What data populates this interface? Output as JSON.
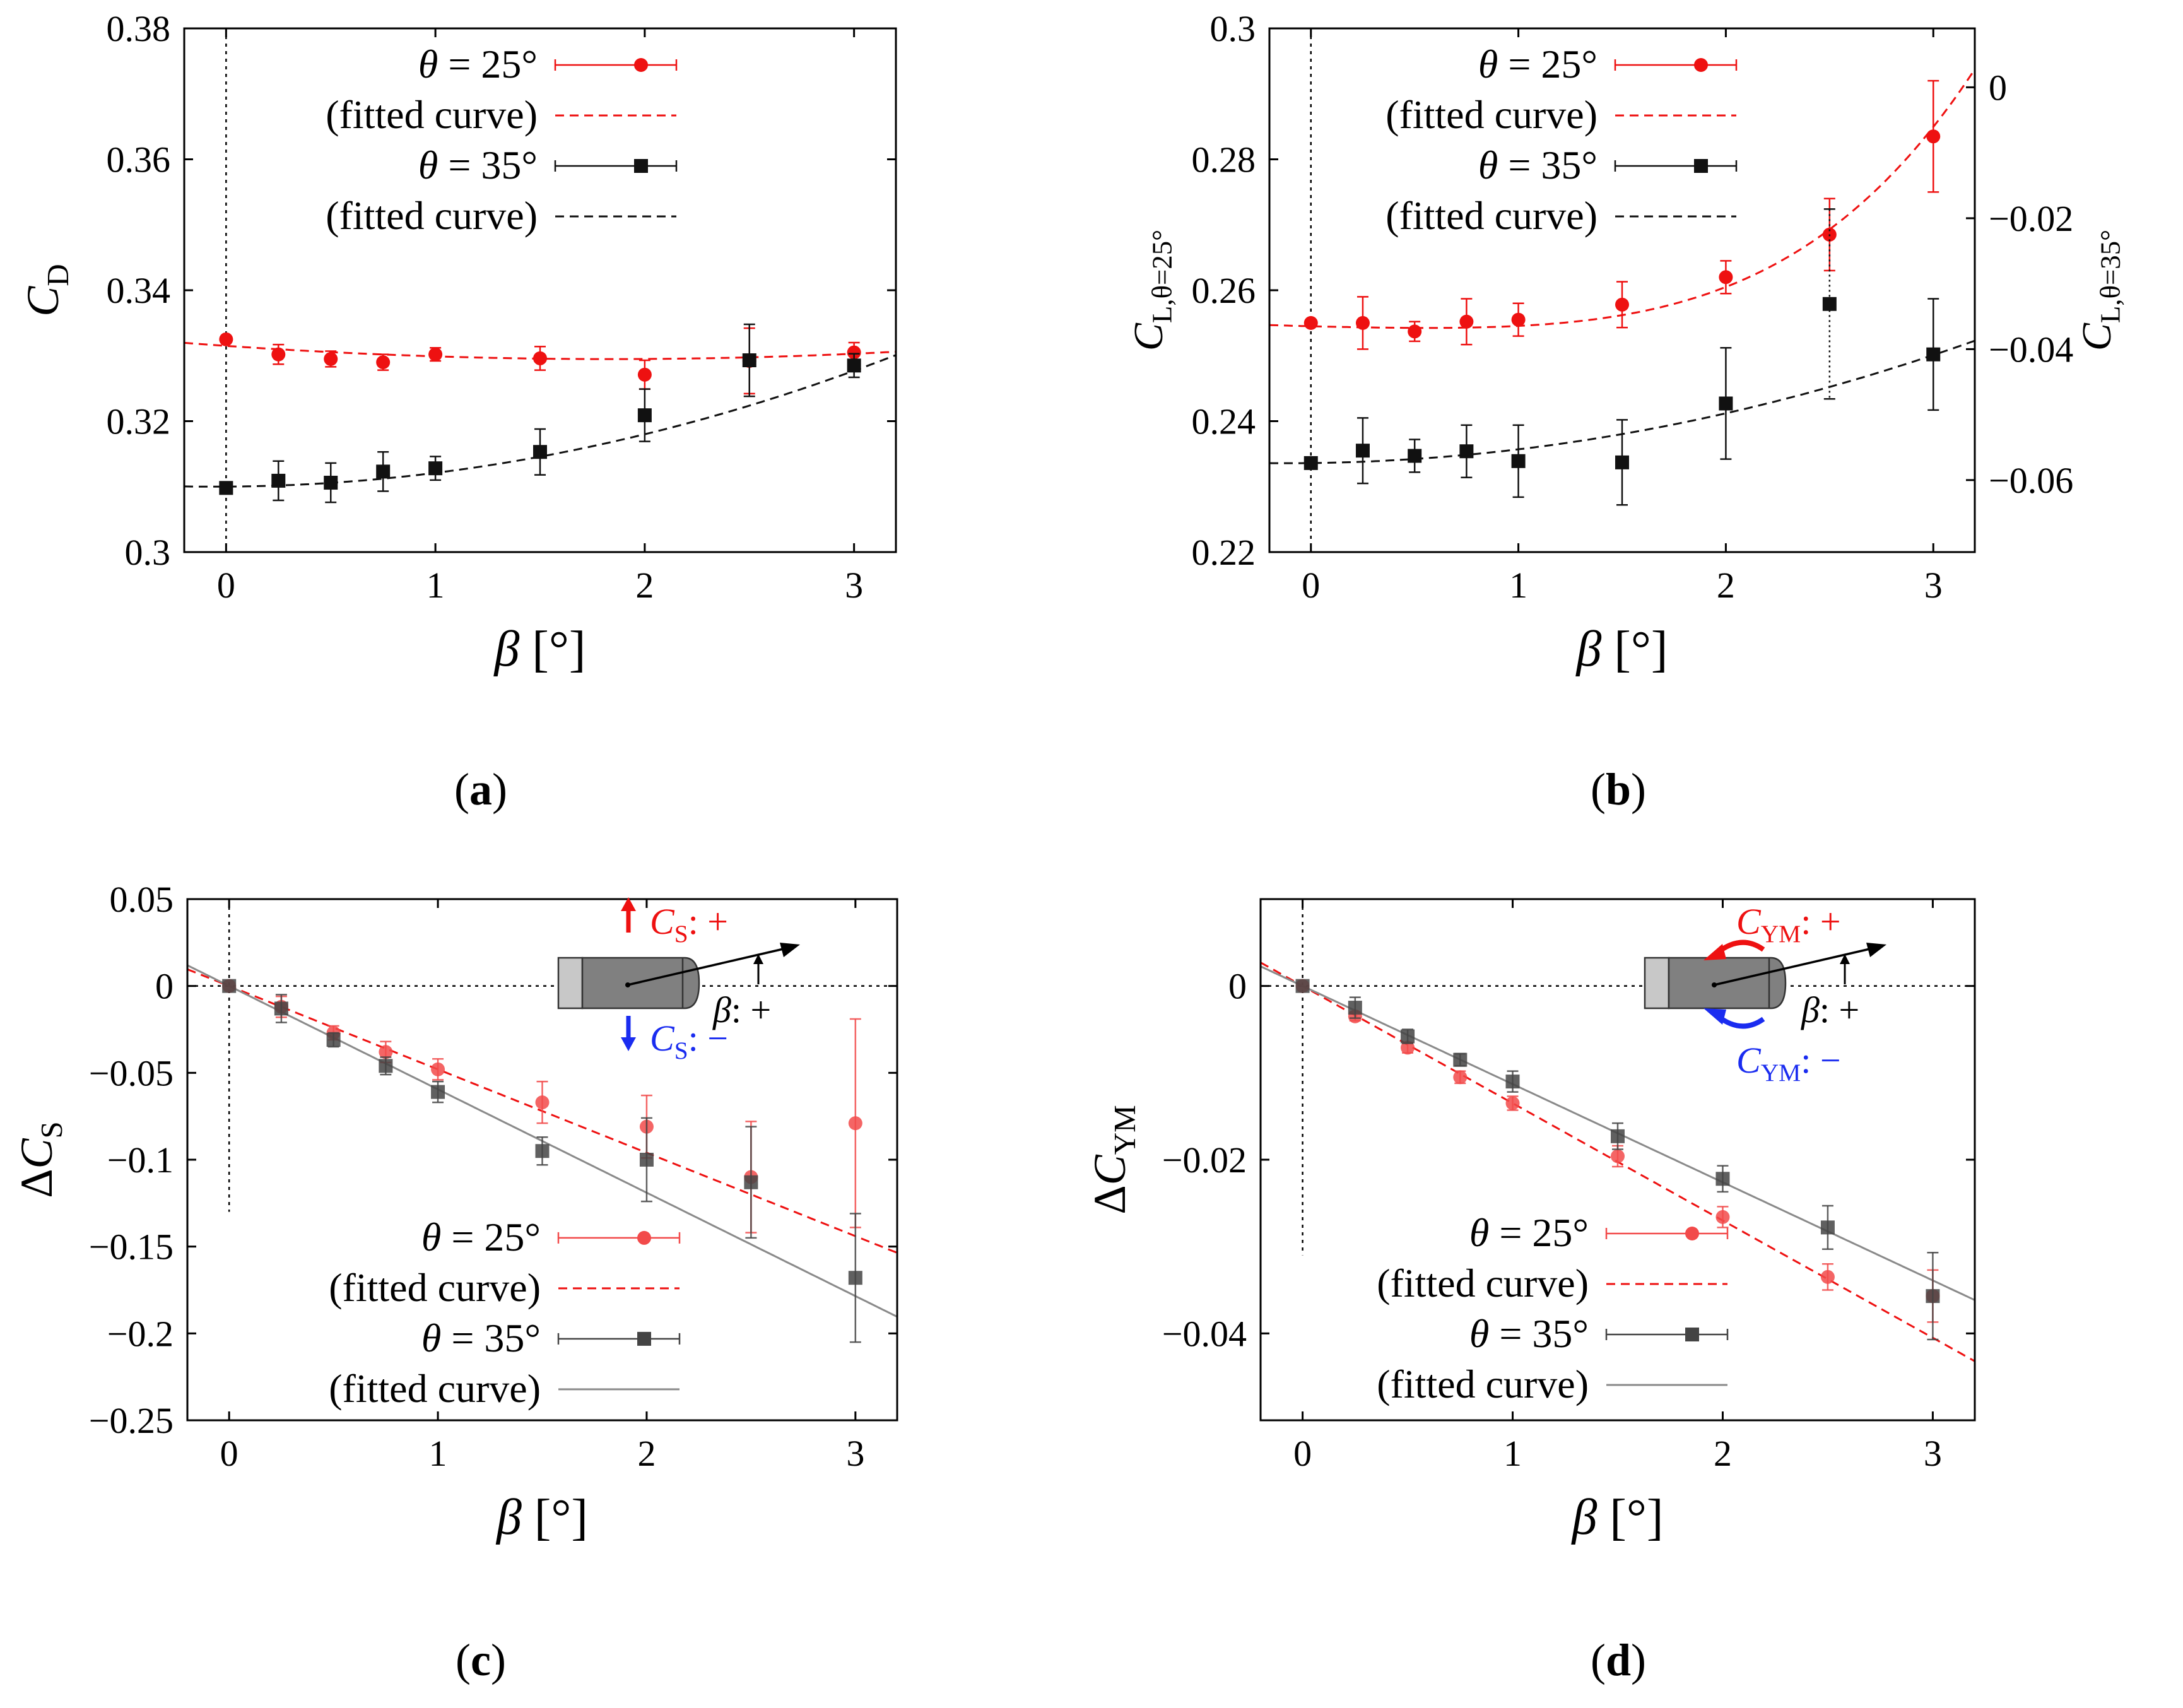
{
  "colors": {
    "red": "#ee1111",
    "black": "#111111",
    "gray": "#555555",
    "grayline": "#8a8a8a",
    "blue": "#1a2cf0",
    "frame": "#000000"
  },
  "chart_data": [
    {
      "id": "a",
      "type": "scatter",
      "caption": "(a)",
      "xlabel": "β [°]",
      "ylabel": "C_D",
      "xlim": [
        -0.2,
        3.2
      ],
      "ylim": [
        0.3,
        0.38
      ],
      "xticks": [
        0,
        1,
        2,
        3
      ],
      "yticks": [
        0.3,
        0.32,
        0.34,
        0.36,
        0.38
      ],
      "ytick_labels": [
        "0.3",
        "0.32",
        "0.34",
        "0.36",
        "0.38"
      ],
      "legend": [
        {
          "label": "θ = 25°",
          "kind": "points",
          "series": 0
        },
        {
          "label": "(fitted curve)",
          "kind": "fit",
          "series": 0
        },
        {
          "label": "θ = 35°",
          "kind": "points",
          "series": 1
        },
        {
          "label": "(fitted curve)",
          "kind": "fit",
          "series": 1
        }
      ],
      "series": [
        {
          "name": "θ = 25°",
          "color": "red",
          "marker": "circle",
          "x": [
            0,
            0.25,
            0.5,
            0.75,
            1,
            1.5,
            2,
            2.5,
            3
          ],
          "y": [
            0.3325,
            0.3302,
            0.3295,
            0.329,
            0.3302,
            0.3296,
            0.3271,
            0.3292,
            0.3305
          ],
          "err": [
            0,
            0.0015,
            0.0012,
            0.0012,
            0.001,
            0.0018,
            0.0022,
            0.005,
            0.0015
          ],
          "fit": {
            "kind": "poly",
            "coef": [
              0.3315,
              -0.0022,
              0.0006
            ],
            "line": "dashed",
            "color": "red"
          }
        },
        {
          "name": "θ = 35°",
          "color": "black",
          "marker": "square",
          "x": [
            0,
            0.25,
            0.5,
            0.75,
            1,
            1.5,
            2,
            2.5,
            3
          ],
          "y": [
            0.3098,
            0.3109,
            0.3106,
            0.3123,
            0.3128,
            0.3153,
            0.3209,
            0.3293,
            0.3285
          ],
          "err": [
            0,
            0.003,
            0.003,
            0.003,
            0.0018,
            0.0035,
            0.004,
            0.0055,
            0.0018
          ],
          "fit": {
            "kind": "poly",
            "coef": [
              0.31,
              0.0002,
              0.0019
            ],
            "line": "dashed",
            "color": "black"
          }
        }
      ]
    },
    {
      "id": "b",
      "type": "scatter",
      "caption": "(b)",
      "xlabel": "β [°]",
      "ylabel": "C_L,θ=25°",
      "y2label": "C_L,θ=35°",
      "xlim": [
        -0.2,
        3.2
      ],
      "ylim": [
        0.22,
        0.3
      ],
      "xticks": [
        0,
        1,
        2,
        3
      ],
      "yticks": [
        0.22,
        0.24,
        0.26,
        0.28,
        0.3
      ],
      "ytick_labels": [
        "0.22",
        "0.24",
        "0.26",
        "0.28",
        "0.3"
      ],
      "y2lim": [
        -0.071,
        0.009
      ],
      "y2ticks": [
        -0.06,
        -0.04,
        -0.02,
        0
      ],
      "y2tick_labels": [
        "−0.06",
        "−0.04",
        "−0.02",
        "0"
      ],
      "legend": [
        {
          "label": "θ = 25°",
          "kind": "points",
          "series": 0
        },
        {
          "label": "(fitted curve)",
          "kind": "fit",
          "series": 0
        },
        {
          "label": "θ = 35°",
          "kind": "points",
          "series": 1
        },
        {
          "label": "(fitted curve)",
          "kind": "fit",
          "series": 1
        }
      ],
      "series": [
        {
          "name": "θ = 25°",
          "color": "red",
          "marker": "circle",
          "axis": "y",
          "x": [
            0,
            0.25,
            0.5,
            0.75,
            1,
            1.5,
            2,
            2.5,
            3
          ],
          "y": [
            0.255,
            0.255,
            0.2537,
            0.2552,
            0.2555,
            0.2578,
            0.262,
            0.2685,
            0.2835
          ],
          "err": [
            0,
            0.004,
            0.0015,
            0.0035,
            0.0025,
            0.0035,
            0.0025,
            0.0055,
            0.0085
          ],
          "fit": {
            "kind": "poly4",
            "coef": [
              0.2545,
              -0.0008,
              0.0005,
              0,
              0.00035
            ],
            "line": "dashed",
            "color": "red"
          }
        },
        {
          "name": "θ = 35°",
          "color": "black",
          "marker": "square",
          "axis": "y2",
          "x": [
            0,
            0.25,
            0.5,
            0.75,
            1,
            1.5,
            2,
            2.5,
            3
          ],
          "y": [
            -0.0574,
            -0.0555,
            -0.0563,
            -0.0556,
            -0.0571,
            -0.0573,
            -0.0483,
            -0.0331,
            -0.0408
          ],
          "err": [
            0,
            0.005,
            0.0025,
            0.004,
            0.0055,
            0.0065,
            0.0085,
            0.0145,
            0.0085
          ],
          "fit": {
            "kind": "poly",
            "coef": [
              -0.0574,
              0.0004,
              0.0017
            ],
            "line": "dashed",
            "color": "black"
          }
        }
      ]
    },
    {
      "id": "c",
      "type": "scatter",
      "caption": "(c)",
      "xlabel": "β [°]",
      "ylabel": "ΔC_S",
      "xlim": [
        -0.2,
        3.2
      ],
      "ylim": [
        -0.25,
        0.05
      ],
      "xticks": [
        0,
        1,
        2,
        3
      ],
      "yticks": [
        -0.25,
        -0.2,
        -0.15,
        -0.1,
        -0.05,
        0,
        0.05
      ],
      "ytick_labels": [
        "−0.25",
        "−0.2",
        "−0.15",
        "−0.1",
        "−0.05",
        "0",
        "0.05"
      ],
      "legend": [
        {
          "label": "θ = 25°",
          "kind": "points",
          "series": 0
        },
        {
          "label": "(fitted curve)",
          "kind": "fit",
          "series": 0
        },
        {
          "label": "θ = 35°",
          "kind": "points",
          "series": 1
        },
        {
          "label": "(fitted curve)",
          "kind": "fit",
          "series": 1
        }
      ],
      "inset": {
        "plus_label": "C_S: +",
        "minus_label": "C_S: −",
        "beta_label": "β: +"
      },
      "series": [
        {
          "name": "θ = 25°",
          "color": "red",
          "marker": "circle",
          "faded": true,
          "x": [
            0,
            0.25,
            0.5,
            0.75,
            1,
            1.5,
            2,
            2.5,
            3
          ],
          "y": [
            0,
            -0.012,
            -0.027,
            -0.038,
            -0.048,
            -0.067,
            -0.081,
            -0.11,
            -0.079
          ],
          "err": [
            0,
            0.006,
            0.004,
            0.006,
            0.006,
            0.012,
            0.018,
            0.032,
            0.06
          ],
          "fit": {
            "kind": "line",
            "coef": [
              0,
              -0.048
            ],
            "line": "dashed",
            "color": "red"
          }
        },
        {
          "name": "θ = 35°",
          "color": "black",
          "marker": "square",
          "faded": true,
          "x": [
            0,
            0.25,
            0.5,
            0.75,
            1,
            1.5,
            2,
            2.5,
            3
          ],
          "y": [
            0,
            -0.013,
            -0.031,
            -0.046,
            -0.061,
            -0.095,
            -0.1,
            -0.113,
            -0.168
          ],
          "err": [
            0,
            0.008,
            0.004,
            0.005,
            0.006,
            0.008,
            0.024,
            0.032,
            0.037
          ],
          "fit": {
            "kind": "line",
            "coef": [
              0,
              -0.0595
            ],
            "line": "solid",
            "color": "grayline"
          }
        }
      ]
    },
    {
      "id": "d",
      "type": "scatter",
      "caption": "(d)",
      "xlabel": "β [°]",
      "ylabel": "ΔC_YM",
      "xlim": [
        -0.2,
        3.2
      ],
      "ylim": [
        -0.05,
        0.01
      ],
      "xticks": [
        0,
        1,
        2,
        3
      ],
      "yticks": [
        -0.04,
        -0.02,
        0
      ],
      "ytick_labels": [
        "−0.04",
        "−0.02",
        "0"
      ],
      "legend": [
        {
          "label": "θ = 25°",
          "kind": "points",
          "series": 0
        },
        {
          "label": "(fitted curve)",
          "kind": "fit",
          "series": 0
        },
        {
          "label": "θ = 35°",
          "kind": "points",
          "series": 1
        },
        {
          "label": "(fitted curve)",
          "kind": "fit",
          "series": 1
        }
      ],
      "inset": {
        "plus_label": "C_YM: +",
        "minus_label": "C_YM: −",
        "beta_label": "β: +"
      },
      "series": [
        {
          "name": "θ = 25°",
          "color": "red",
          "marker": "circle",
          "faded": true,
          "x": [
            0,
            0.25,
            0.5,
            0.75,
            1,
            1.5,
            2,
            2.5,
            3
          ],
          "y": [
            0,
            -0.0035,
            -0.0071,
            -0.0105,
            -0.0135,
            -0.0196,
            -0.0266,
            -0.0335,
            -0.0357
          ],
          "err": [
            0,
            0.0005,
            0.0006,
            0.0007,
            0.0008,
            0.0012,
            0.0012,
            0.0015,
            0.003
          ],
          "fit": {
            "kind": "line",
            "coef": [
              0,
              -0.0135
            ],
            "line": "dashed",
            "color": "red"
          }
        },
        {
          "name": "θ = 35°",
          "color": "black",
          "marker": "square",
          "faded": true,
          "x": [
            0,
            0.25,
            0.5,
            0.75,
            1,
            1.5,
            2,
            2.5,
            3
          ],
          "y": [
            0,
            -0.0025,
            -0.0058,
            -0.0085,
            -0.011,
            -0.0173,
            -0.0222,
            -0.0278,
            -0.0357
          ],
          "err": [
            0,
            0.0012,
            0.0008,
            0.0007,
            0.0012,
            0.0015,
            0.0015,
            0.0025,
            0.005
          ],
          "fit": {
            "kind": "line",
            "coef": [
              0,
              -0.0113
            ],
            "line": "solid",
            "color": "grayline"
          }
        }
      ]
    }
  ]
}
